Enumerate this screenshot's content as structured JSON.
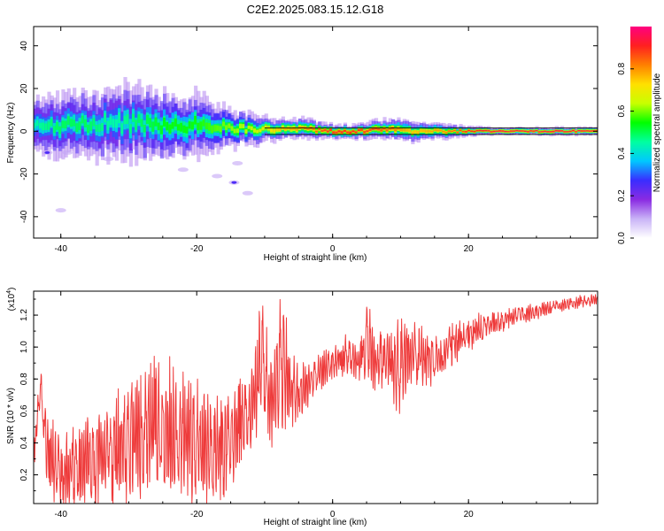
{
  "title": "C2E2.2025.083.15.12.G18",
  "colors": {
    "snr_line": "#ee3a3a",
    "background": "#ffffff",
    "axis": "#000000"
  },
  "chart_data": [
    {
      "type": "heatmap",
      "title": "C2E2.2025.083.15.12.G18",
      "xlabel": "Height of straight line (km)",
      "ylabel": "Frequency (Hz)",
      "xlim": [
        -44,
        39
      ],
      "ylim": [
        -50,
        49
      ],
      "x_ticks": [
        -40,
        -20,
        0,
        20
      ],
      "y_ticks": [
        -40,
        -20,
        0,
        20,
        40
      ],
      "colorbar": {
        "label": "Normalized spectral amplitude",
        "range": [
          0.0,
          1.0
        ],
        "ticks": [
          0.0,
          0.2,
          0.4,
          0.6,
          0.8
        ],
        "colormap": "rainbow",
        "colors": [
          "#ffffff",
          "#c9b3f7",
          "#8a2be2",
          "#3a2dff",
          "#00c8ff",
          "#00ffa0",
          "#00ff00",
          "#c8ff00",
          "#ffe000",
          "#ff8000",
          "#ff2020",
          "#ff0080"
        ]
      },
      "ridge": {
        "x": [
          -44,
          -40,
          -36,
          -32,
          -28,
          -24,
          -20,
          -16,
          -12,
          -8,
          -4,
          0,
          4,
          8,
          12,
          16,
          20,
          24,
          28,
          32,
          36,
          39
        ],
        "freq": [
          2,
          3,
          3,
          4,
          4,
          3,
          3,
          2,
          1,
          1,
          1,
          0,
          0,
          1,
          0,
          0,
          0,
          0,
          0,
          0,
          0,
          0
        ],
        "spread": [
          5,
          6,
          6,
          7,
          7,
          6,
          6,
          4,
          3,
          2,
          2,
          1.5,
          1.5,
          2,
          2,
          1.5,
          1,
          0.8,
          0.8,
          0.8,
          0.8,
          0.8
        ],
        "amplitude": [
          0.45,
          0.5,
          0.5,
          0.45,
          0.5,
          0.55,
          0.55,
          0.6,
          0.65,
          0.75,
          0.8,
          0.9,
          0.9,
          0.85,
          0.75,
          0.8,
          0.9,
          0.95,
          0.95,
          0.95,
          0.95,
          0.95
        ]
      },
      "scattered_patches": [
        {
          "x": -42,
          "freq": -10,
          "amplitude": 0.25
        },
        {
          "x": -39,
          "freq": -10,
          "amplitude": 0.1
        },
        {
          "x": -33,
          "freq": -13,
          "amplitude": 0.1
        },
        {
          "x": -22,
          "freq": -18,
          "amplitude": 0.1
        },
        {
          "x": -17,
          "freq": -21,
          "amplitude": 0.1
        },
        {
          "x": -14.5,
          "freq": -24,
          "amplitude": 0.25
        },
        {
          "x": -12.5,
          "freq": -29,
          "amplitude": 0.1
        },
        {
          "x": -14,
          "freq": -15,
          "amplitude": 0.1
        },
        {
          "x": -40,
          "freq": -37,
          "amplitude": 0.05
        }
      ]
    },
    {
      "type": "line",
      "xlabel": "Height of straight line (km)",
      "ylabel": "SNR (10 * v/v)",
      "y_multiplier": "(x10",
      "y_multiplier_exp": "4",
      "y_multiplier_close": ")",
      "xlim": [
        -44,
        39
      ],
      "ylim": [
        0.02,
        1.35
      ],
      "x_ticks": [
        -40,
        -20,
        0,
        20
      ],
      "y_ticks": [
        0.2,
        0.4,
        0.6,
        0.8,
        1.0,
        1.2
      ],
      "envelope": {
        "x": [
          -44,
          -43,
          -42,
          -40,
          -38,
          -36,
          -34,
          -32,
          -30,
          -28,
          -26,
          -24,
          -22,
          -20,
          -18,
          -16,
          -14,
          -12,
          -10.5,
          -9,
          -7.5,
          -6,
          -4,
          -2,
          0,
          2,
          4,
          5.2,
          6,
          8,
          9.5,
          11,
          13,
          15,
          17,
          19,
          21,
          24,
          27,
          30,
          33,
          36,
          39
        ],
        "center": [
          0.3,
          0.75,
          0.35,
          0.2,
          0.25,
          0.3,
          0.35,
          0.35,
          0.4,
          0.45,
          0.5,
          0.45,
          0.4,
          0.4,
          0.35,
          0.35,
          0.5,
          0.6,
          0.9,
          0.65,
          0.9,
          0.7,
          0.75,
          0.85,
          0.9,
          0.95,
          0.9,
          1.1,
          0.9,
          0.95,
          0.85,
          0.95,
          0.95,
          0.9,
          1.0,
          1.05,
          1.1,
          1.15,
          1.2,
          1.22,
          1.26,
          1.28,
          1.3
        ],
        "spread": [
          0.1,
          0.1,
          0.2,
          0.18,
          0.22,
          0.25,
          0.25,
          0.3,
          0.3,
          0.35,
          0.35,
          0.35,
          0.35,
          0.35,
          0.3,
          0.3,
          0.25,
          0.2,
          0.35,
          0.25,
          0.35,
          0.2,
          0.12,
          0.1,
          0.08,
          0.1,
          0.1,
          0.25,
          0.15,
          0.15,
          0.3,
          0.2,
          0.15,
          0.15,
          0.12,
          0.1,
          0.08,
          0.06,
          0.05,
          0.04,
          0.03,
          0.03,
          0.03
        ]
      }
    }
  ]
}
